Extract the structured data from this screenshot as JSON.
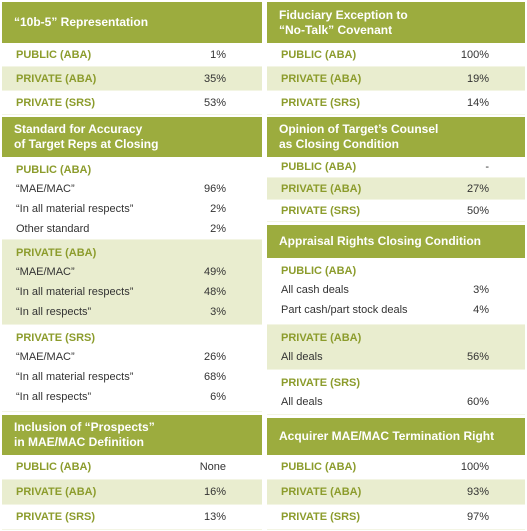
{
  "columns": [
    {
      "sections": [
        {
          "title": [
            "“10b-5” Representation"
          ],
          "rows": [
            {
              "label": "PUBLIC (ABA)",
              "value": "1%"
            },
            {
              "label": "PRIVATE (ABA)",
              "value": "35%"
            },
            {
              "label": "PRIVATE (SRS)",
              "value": "53%"
            }
          ]
        },
        {
          "title": [
            "Standard for Accuracy",
            "of Target Reps at Closing"
          ],
          "groups": [
            {
              "label": "PUBLIC (ABA)",
              "rows": [
                {
                  "label": "“MAE/MAC”",
                  "value": "96%"
                },
                {
                  "label": "“In all material respects”",
                  "value": "2%"
                },
                {
                  "label": "Other standard",
                  "value": "2%"
                }
              ]
            },
            {
              "label": "PRIVATE (ABA)",
              "rows": [
                {
                  "label": "“MAE/MAC”",
                  "value": "49%"
                },
                {
                  "label": "“In all material respects”",
                  "value": "48%"
                },
                {
                  "label": "“In all respects”",
                  "value": "3%"
                }
              ]
            },
            {
              "label": "PRIVATE (SRS)",
              "rows": [
                {
                  "label": "“MAE/MAC”",
                  "value": "26%"
                },
                {
                  "label": "“In all material respects”",
                  "value": "68%"
                },
                {
                  "label": "“In all respects”",
                  "value": "6%"
                }
              ]
            }
          ]
        },
        {
          "title": [
            "Inclusion of “Prospects”",
            "in MAE/MAC Definition"
          ],
          "rows": [
            {
              "label": "PUBLIC (ABA)",
              "value": "None"
            },
            {
              "label": "PRIVATE (ABA)",
              "value": "16%"
            },
            {
              "label": "PRIVATE (SRS)",
              "value": "13%"
            }
          ]
        }
      ]
    },
    {
      "sections": [
        {
          "title": [
            "Fiduciary Exception to",
            "“No-Talk” Covenant"
          ],
          "rows": [
            {
              "label": "PUBLIC (ABA)",
              "value": "100%"
            },
            {
              "label": "PRIVATE (ABA)",
              "value": "19%"
            },
            {
              "label": "PRIVATE (SRS)",
              "value": "14%"
            }
          ]
        },
        {
          "title": [
            "Opinion of Target’s Counsel",
            "as Closing Condition"
          ],
          "rows": [
            {
              "label": "PUBLIC (ABA)",
              "value": "-"
            },
            {
              "label": "PRIVATE (ABA)",
              "value": "27%"
            },
            {
              "label": "PRIVATE (SRS)",
              "value": "50%"
            }
          ]
        },
        {
          "title": [
            "Appraisal Rights Closing Condition"
          ],
          "groups": [
            {
              "label": "PUBLIC (ABA)",
              "rows": [
                {
                  "label": "All cash deals",
                  "value": "3%"
                },
                {
                  "label": "Part cash/part stock deals",
                  "value": "4%"
                }
              ]
            },
            {
              "label": "PRIVATE (ABA)",
              "rows": [
                {
                  "label": "All deals",
                  "value": "56%"
                }
              ]
            },
            {
              "label": "PRIVATE (SRS)",
              "rows": [
                {
                  "label": "All deals",
                  "value": "60%"
                }
              ]
            }
          ]
        },
        {
          "title": [
            "Acquirer MAE/MAC Termination Right"
          ],
          "rows": [
            {
              "label": "PUBLIC (ABA)",
              "value": "100%"
            },
            {
              "label": "PRIVATE (ABA)",
              "value": "93%"
            },
            {
              "label": "PRIVATE (SRS)",
              "value": "97%"
            }
          ]
        }
      ]
    }
  ]
}
